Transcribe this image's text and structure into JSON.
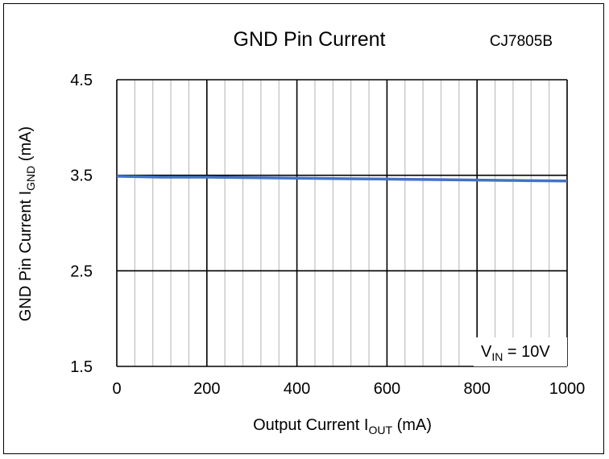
{
  "chart_data": {
    "type": "line",
    "title": "GND Pin Current",
    "part_number": "CJ7805B",
    "xlabel_main": "Output Current I",
    "xlabel_sub": "OUT",
    "xlabel_unit": " (mA)",
    "ylabel_main": "GND Pin Current I",
    "ylabel_sub": "GND",
    "ylabel_unit": " (mA)",
    "annotation_main": "V",
    "annotation_sub": "IN",
    "annotation_rest": " = 10V",
    "xlim": [
      0,
      1000
    ],
    "ylim": [
      1.5,
      4.5
    ],
    "x_ticks": [
      "0",
      "200",
      "400",
      "600",
      "800",
      "1000"
    ],
    "x_tick_values": [
      0,
      200,
      400,
      600,
      800,
      1000
    ],
    "y_ticks": [
      "1.5",
      "2.5",
      "3.5",
      "4.5"
    ],
    "y_tick_values": [
      1.5,
      2.5,
      3.5,
      4.5
    ],
    "grid": true,
    "series": [
      {
        "color": "#4472C4",
        "x": [
          0,
          100,
          200,
          300,
          400,
          500,
          600,
          700,
          800,
          900,
          1000
        ],
        "y": [
          3.49,
          3.48,
          3.48,
          3.475,
          3.47,
          3.465,
          3.46,
          3.455,
          3.45,
          3.445,
          3.44
        ]
      }
    ]
  }
}
